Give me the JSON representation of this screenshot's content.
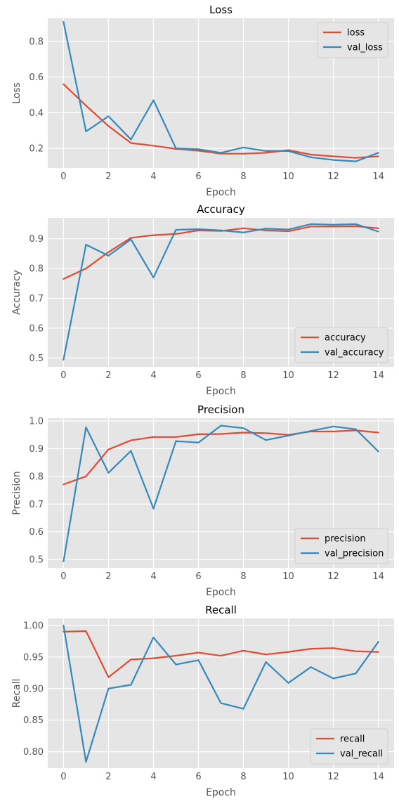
{
  "style": {
    "panel_bg": "#E5E5E5",
    "grid_color": "#FFFFFF",
    "series_colors": [
      "#E24A33",
      "#348ABD"
    ]
  },
  "chart_data": [
    {
      "type": "line",
      "title": "Loss",
      "xlabel": "Epoch",
      "ylabel": "Loss",
      "xlim": [
        -0.7,
        14.7
      ],
      "ylim": [
        0.09,
        0.93
      ],
      "xticks": [
        0,
        2,
        4,
        6,
        8,
        10,
        12,
        14
      ],
      "yticks": [
        0.2,
        0.4,
        0.6,
        0.8
      ],
      "ytick_labels": [
        "0.2",
        "0.4",
        "0.6",
        "0.8"
      ],
      "grid": true,
      "legend_position": "top-right",
      "x": [
        0,
        1,
        2,
        3,
        4,
        5,
        6,
        7,
        8,
        9,
        10,
        11,
        12,
        13,
        14
      ],
      "series": [
        {
          "name": "loss",
          "values": [
            0.56,
            0.44,
            0.325,
            0.23,
            0.215,
            0.197,
            0.187,
            0.17,
            0.17,
            0.175,
            0.19,
            0.165,
            0.155,
            0.147,
            0.155
          ]
        },
        {
          "name": "val_loss",
          "values": [
            0.91,
            0.295,
            0.38,
            0.25,
            0.47,
            0.2,
            0.195,
            0.175,
            0.205,
            0.185,
            0.185,
            0.15,
            0.135,
            0.127,
            0.175
          ]
        }
      ]
    },
    {
      "type": "line",
      "title": "Accuracy",
      "xlabel": "Epoch",
      "ylabel": "Accuracy",
      "xlim": [
        -0.7,
        14.7
      ],
      "ylim": [
        0.47,
        0.97
      ],
      "xticks": [
        0,
        2,
        4,
        6,
        8,
        10,
        12,
        14
      ],
      "yticks": [
        0.5,
        0.6,
        0.7,
        0.8,
        0.9
      ],
      "ytick_labels": [
        "0.5",
        "0.6",
        "0.7",
        "0.8",
        "0.9"
      ],
      "grid": true,
      "legend_position": "bottom-right",
      "x": [
        0,
        1,
        2,
        3,
        4,
        5,
        6,
        7,
        8,
        9,
        10,
        11,
        12,
        13,
        14
      ],
      "series": [
        {
          "name": "accuracy",
          "values": [
            0.765,
            0.8,
            0.855,
            0.903,
            0.912,
            0.916,
            0.928,
            0.926,
            0.935,
            0.928,
            0.925,
            0.941,
            0.941,
            0.942,
            0.935
          ]
        },
        {
          "name": "val_accuracy",
          "values": [
            0.494,
            0.88,
            0.843,
            0.898,
            0.77,
            0.93,
            0.932,
            0.928,
            0.921,
            0.934,
            0.931,
            0.949,
            0.947,
            0.949,
            0.924
          ]
        }
      ]
    },
    {
      "type": "line",
      "title": "Precision",
      "xlabel": "Epoch",
      "ylabel": "Precision",
      "xlim": [
        -0.7,
        14.7
      ],
      "ylim": [
        0.47,
        1.01
      ],
      "xticks": [
        0,
        2,
        4,
        6,
        8,
        10,
        12,
        14
      ],
      "yticks": [
        0.5,
        0.6,
        0.7,
        0.8,
        0.9,
        1.0
      ],
      "ytick_labels": [
        "0.5",
        "0.6",
        "0.7",
        "0.8",
        "0.9",
        "1.0"
      ],
      "grid": true,
      "legend_position": "bottom-right",
      "x": [
        0,
        1,
        2,
        3,
        4,
        5,
        6,
        7,
        8,
        9,
        10,
        11,
        12,
        13,
        14
      ],
      "series": [
        {
          "name": "precision",
          "values": [
            0.771,
            0.8,
            0.897,
            0.93,
            0.942,
            0.942,
            0.952,
            0.953,
            0.958,
            0.956,
            0.95,
            0.962,
            0.962,
            0.966,
            0.958
          ]
        },
        {
          "name": "val_precision",
          "values": [
            0.493,
            0.977,
            0.813,
            0.892,
            0.684,
            0.927,
            0.922,
            0.983,
            0.974,
            0.931,
            0.947,
            0.964,
            0.98,
            0.97,
            0.89
          ]
        }
      ]
    },
    {
      "type": "line",
      "title": "Recall",
      "xlabel": "Epoch",
      "ylabel": "Recall",
      "xlim": [
        -0.7,
        14.7
      ],
      "ylim": [
        0.774,
        1.011
      ],
      "xticks": [
        0,
        2,
        4,
        6,
        8,
        10,
        12,
        14
      ],
      "yticks": [
        0.8,
        0.85,
        0.9,
        0.95,
        1.0
      ],
      "ytick_labels": [
        "0.80",
        "0.85",
        "0.90",
        "0.95",
        "1.00"
      ],
      "grid": true,
      "legend_position": "bottom-right",
      "x": [
        0,
        1,
        2,
        3,
        4,
        5,
        6,
        7,
        8,
        9,
        10,
        11,
        12,
        13,
        14
      ],
      "series": [
        {
          "name": "recall",
          "values": [
            0.99,
            0.991,
            0.918,
            0.946,
            0.948,
            0.952,
            0.957,
            0.952,
            0.96,
            0.954,
            0.958,
            0.963,
            0.964,
            0.959,
            0.958
          ]
        },
        {
          "name": "val_recall",
          "values": [
            1.0,
            0.784,
            0.9,
            0.906,
            0.981,
            0.938,
            0.945,
            0.877,
            0.868,
            0.942,
            0.909,
            0.934,
            0.916,
            0.924,
            0.974
          ]
        }
      ]
    }
  ]
}
